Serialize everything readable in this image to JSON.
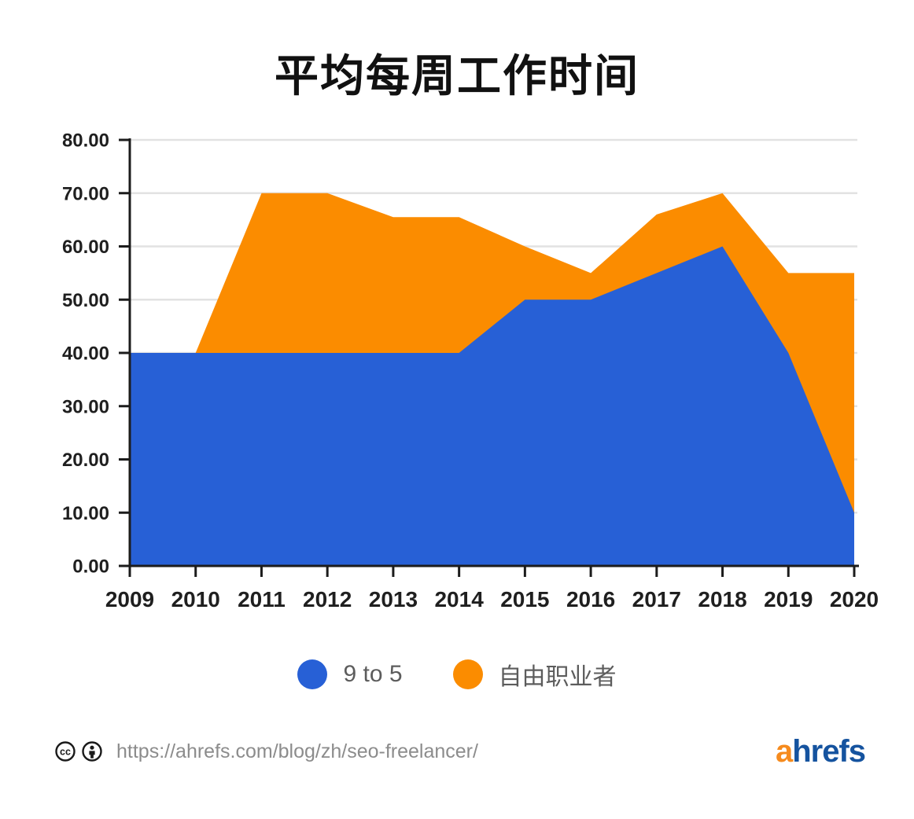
{
  "title": "平均每周工作时间",
  "chart_data": {
    "type": "area",
    "title": "平均每周工作时间",
    "x": [
      2009,
      2010,
      2011,
      2012,
      2013,
      2014,
      2015,
      2016,
      2017,
      2018,
      2019,
      2020
    ],
    "series": [
      {
        "name": "9 to 5",
        "color": "#2760d6",
        "values": [
          40,
          40,
          40,
          40,
          40,
          40,
          50,
          50,
          55,
          60,
          40,
          10
        ]
      },
      {
        "name": "自由职业者",
        "color": "#fb8c00",
        "values": [
          40,
          40,
          70,
          70,
          65.5,
          65.5,
          60,
          55,
          66,
          70,
          55,
          55
        ]
      }
    ],
    "ylim": [
      0,
      80
    ],
    "ytick_step": 10,
    "ytick_labels": [
      "0.00",
      "10.00",
      "20.00",
      "30.00",
      "40.00",
      "50.00",
      "60.00",
      "70.00",
      "80.00"
    ],
    "xtick_labels": [
      "2009",
      "2010",
      "2011",
      "2012",
      "2013",
      "2014",
      "2015",
      "2016",
      "2017",
      "2018",
      "2019",
      "2020"
    ],
    "grid": true,
    "gridline_color": "#e2e2e2",
    "axis_color": "#1c1c1c",
    "tick_label_color": "#1f1f1f",
    "legend_position": "bottom"
  },
  "legend": {
    "items": [
      {
        "label": "9 to 5",
        "color": "#2760d6"
      },
      {
        "label": "自由职业者",
        "color": "#fb8c00"
      }
    ]
  },
  "footer": {
    "url": "https://ahrefs.com/blog/zh/seo-freelancer/",
    "license_icons": [
      "cc-icon",
      "attribution-icon"
    ],
    "logo_prefix": "a",
    "logo_suffix": "hrefs",
    "logo_prefix_color": "#f68b1e",
    "logo_suffix_color": "#15539f"
  }
}
